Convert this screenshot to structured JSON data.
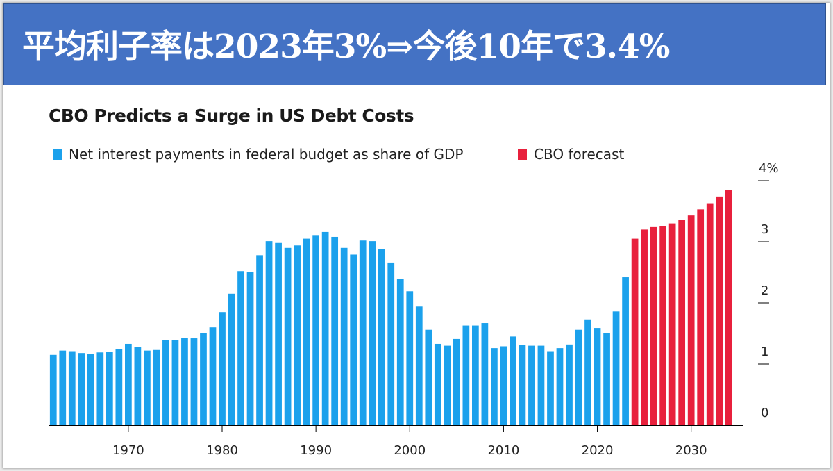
{
  "banner": {
    "title": "平均利子率は2023年3%⇒今後10年で3.4%"
  },
  "chart_data": {
    "type": "bar",
    "title": "CBO Predicts a Surge in US Debt Costs",
    "legend": [
      {
        "label": "Net interest payments in federal budget as share of GDP",
        "color": "#1ba1ec"
      },
      {
        "label": "CBO forecast",
        "color": "#e8203c"
      }
    ],
    "colors": {
      "historical": "#1ba1ec",
      "forecast": "#e8203c"
    },
    "x_tick_labels": [
      "1970",
      "1980",
      "1990",
      "2000",
      "2010",
      "2020",
      "2030"
    ],
    "x_ticks": [
      1970,
      1980,
      1990,
      2000,
      2010,
      2020,
      2030
    ],
    "y_tick_labels": [
      "0",
      "1",
      "2",
      "3",
      "4%"
    ],
    "y_ticks": [
      0,
      1,
      2,
      3,
      4
    ],
    "ylim": [
      0,
      4
    ],
    "xlim": [
      1961.5,
      2035.5
    ],
    "y_axis_side": "right",
    "grid": false,
    "legend_position": "top-left",
    "series": [
      {
        "name": "Net interest payments in federal budget as share of GDP",
        "x": [
          1962,
          1963,
          1964,
          1965,
          1966,
          1967,
          1968,
          1969,
          1970,
          1971,
          1972,
          1973,
          1974,
          1975,
          1976,
          1977,
          1978,
          1979,
          1980,
          1981,
          1982,
          1983,
          1984,
          1985,
          1986,
          1987,
          1988,
          1989,
          1990,
          1991,
          1992,
          1993,
          1994,
          1995,
          1996,
          1997,
          1998,
          1999,
          2000,
          2001,
          2002,
          2003,
          2004,
          2005,
          2006,
          2007,
          2008,
          2009,
          2010,
          2011,
          2012,
          2013,
          2014,
          2015,
          2016,
          2017,
          2018,
          2019,
          2020,
          2021,
          2022,
          2023
        ],
        "values": [
          1.15,
          1.22,
          1.21,
          1.18,
          1.17,
          1.19,
          1.2,
          1.25,
          1.33,
          1.28,
          1.22,
          1.23,
          1.39,
          1.39,
          1.43,
          1.42,
          1.5,
          1.6,
          1.85,
          2.15,
          2.52,
          2.5,
          2.78,
          3.01,
          2.98,
          2.9,
          2.94,
          3.05,
          3.11,
          3.16,
          3.08,
          2.9,
          2.79,
          3.02,
          3.01,
          2.88,
          2.66,
          2.39,
          2.19,
          1.94,
          1.56,
          1.33,
          1.3,
          1.41,
          1.63,
          1.63,
          1.67,
          1.26,
          1.29,
          1.45,
          1.31,
          1.3,
          1.3,
          1.21,
          1.26,
          1.32,
          1.56,
          1.73,
          1.59,
          1.51,
          1.86,
          2.42
        ]
      },
      {
        "name": "CBO forecast",
        "x": [
          2024,
          2025,
          2026,
          2027,
          2028,
          2029,
          2030,
          2031,
          2032,
          2033,
          2034
        ],
        "values": [
          3.05,
          3.2,
          3.24,
          3.26,
          3.3,
          3.36,
          3.43,
          3.53,
          3.63,
          3.74,
          3.85
        ]
      }
    ]
  }
}
